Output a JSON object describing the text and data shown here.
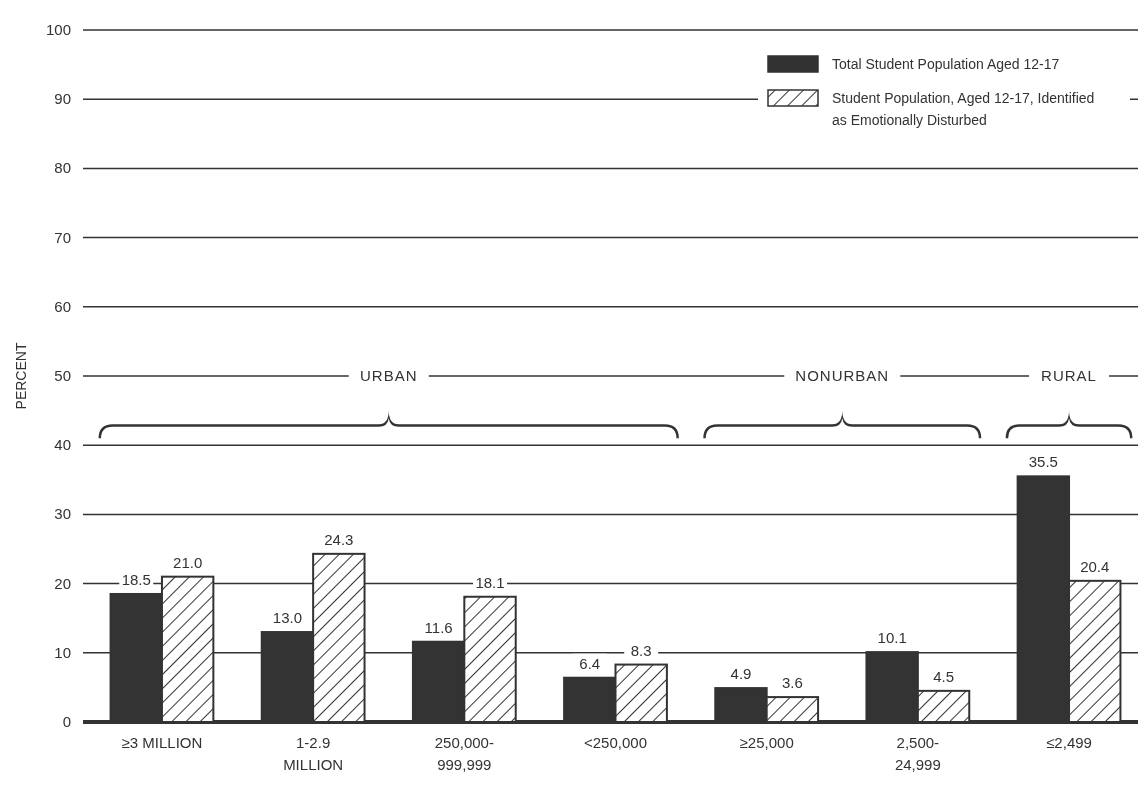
{
  "chart_data": {
    "type": "bar",
    "ylabel": "PERCENT",
    "categories": [
      "≥3 MILLION",
      "1-2.9\nMILLION",
      "250,000-\n999,999",
      "<250,000",
      "≥25,000",
      "2,500-\n24,999",
      "≤2,499"
    ],
    "series": [
      {
        "name": "Total Student Population Aged 12-17",
        "color": "#333333",
        "values": [
          18.5,
          13.0,
          11.6,
          6.4,
          4.9,
          10.1,
          35.5
        ],
        "value_labels": [
          "18.5",
          "13.0",
          "11.6",
          "6.4",
          "4.9",
          "10.1",
          "35.5"
        ]
      },
      {
        "name": "Student Population, Aged 12-17, Identified\nas Emotionally Disturbed",
        "color": "#333333",
        "values": [
          21.0,
          24.3,
          18.1,
          8.3,
          3.6,
          4.5,
          20.4
        ],
        "value_labels": [
          "21.0",
          "24.3",
          "18.1",
          "8.3",
          "3.6",
          "4.5",
          "20.4"
        ]
      }
    ],
    "ylim": [
      0,
      100
    ],
    "yticks": [
      0,
      10,
      20,
      30,
      40,
      50,
      60,
      70,
      80,
      90,
      100
    ],
    "grid": "y",
    "legend": "top right",
    "annotations": [
      "URBAN",
      "NONURBAN",
      "RURAL"
    ]
  }
}
